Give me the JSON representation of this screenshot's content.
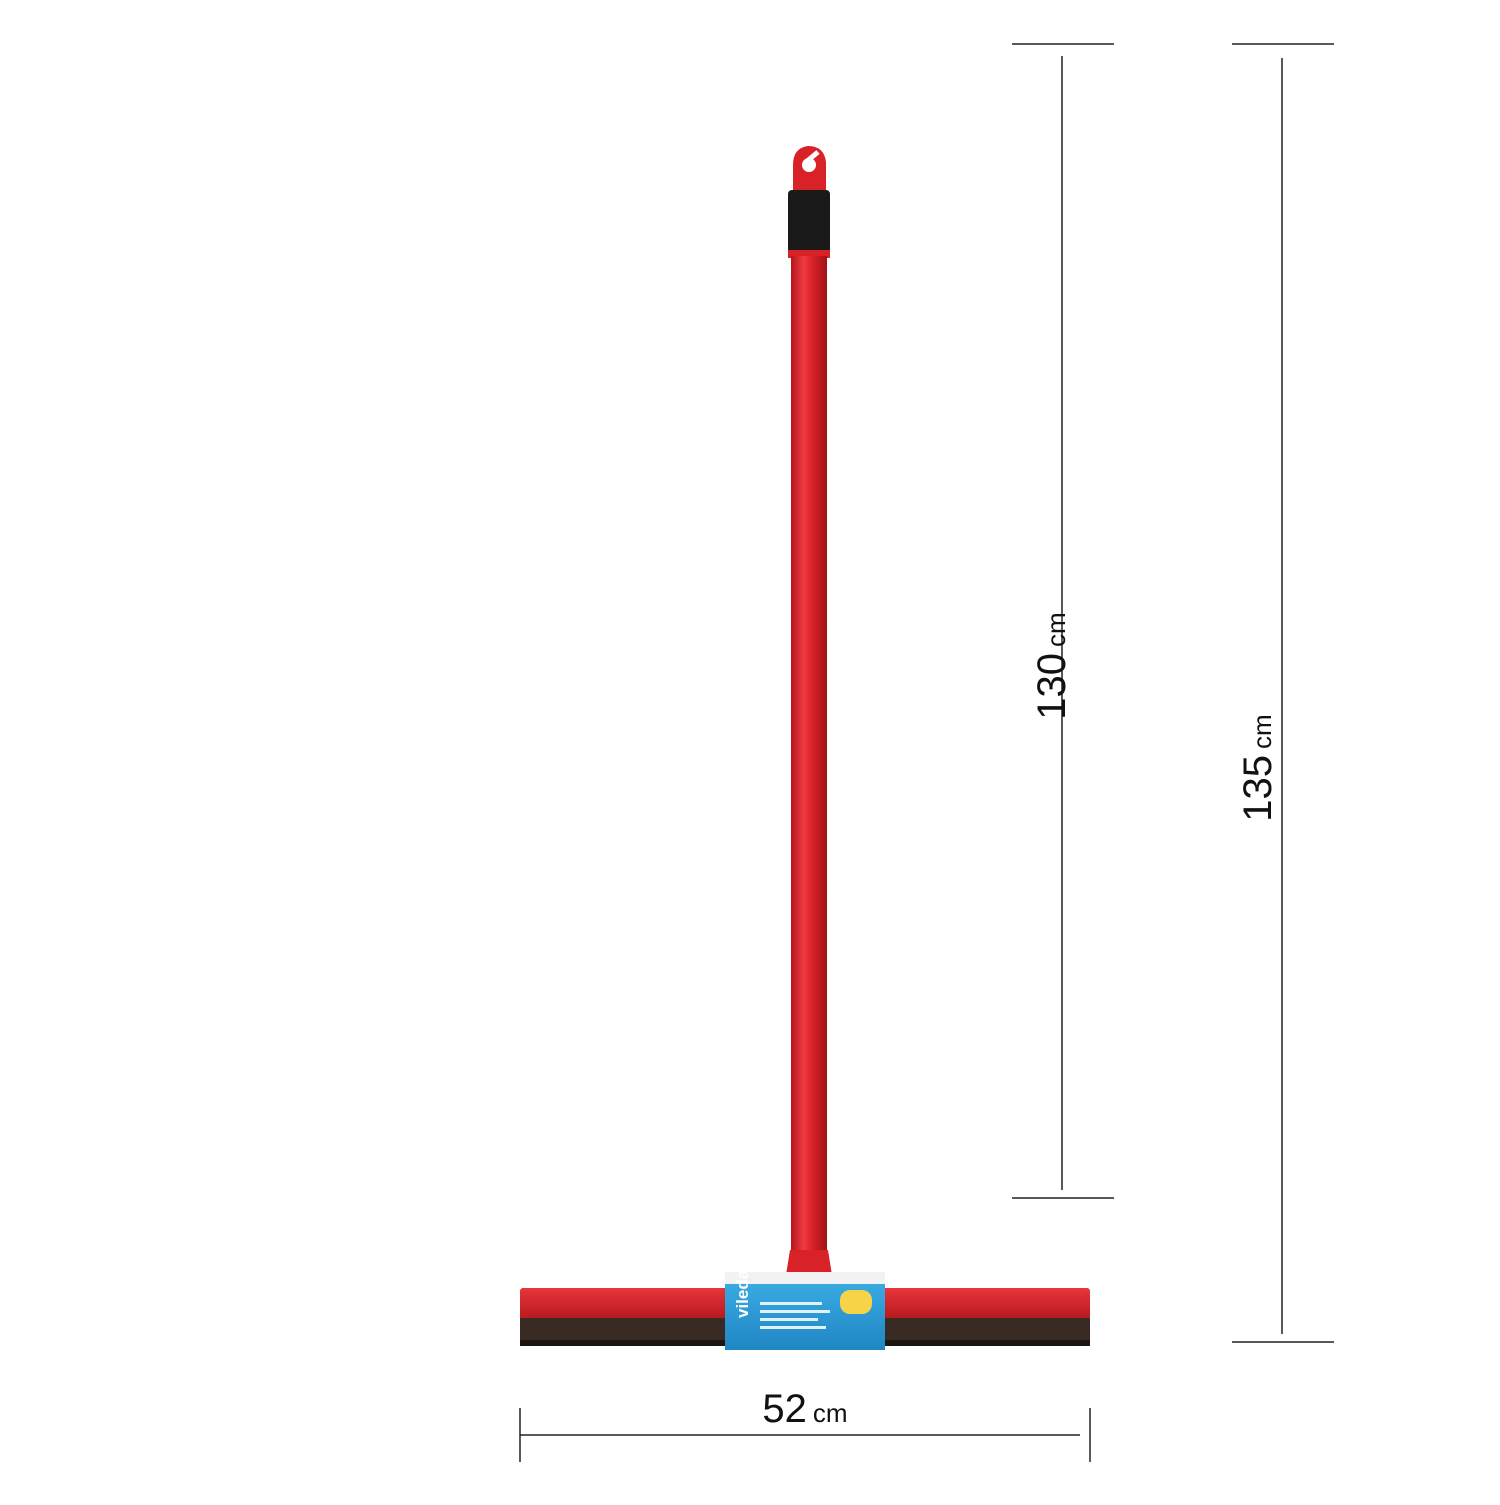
{
  "product": {
    "brand": "vileda",
    "colors": {
      "handle": "#d92128",
      "grip": "#1a1a1a",
      "blade": "#3a2a24",
      "frame": "#d92128",
      "label": "#2a9bd6"
    }
  },
  "dimensions": {
    "handle_height": {
      "value": "130",
      "unit": "cm"
    },
    "total_height": {
      "value": "135",
      "unit": "cm"
    },
    "width": {
      "value": "52",
      "unit": "cm"
    }
  }
}
